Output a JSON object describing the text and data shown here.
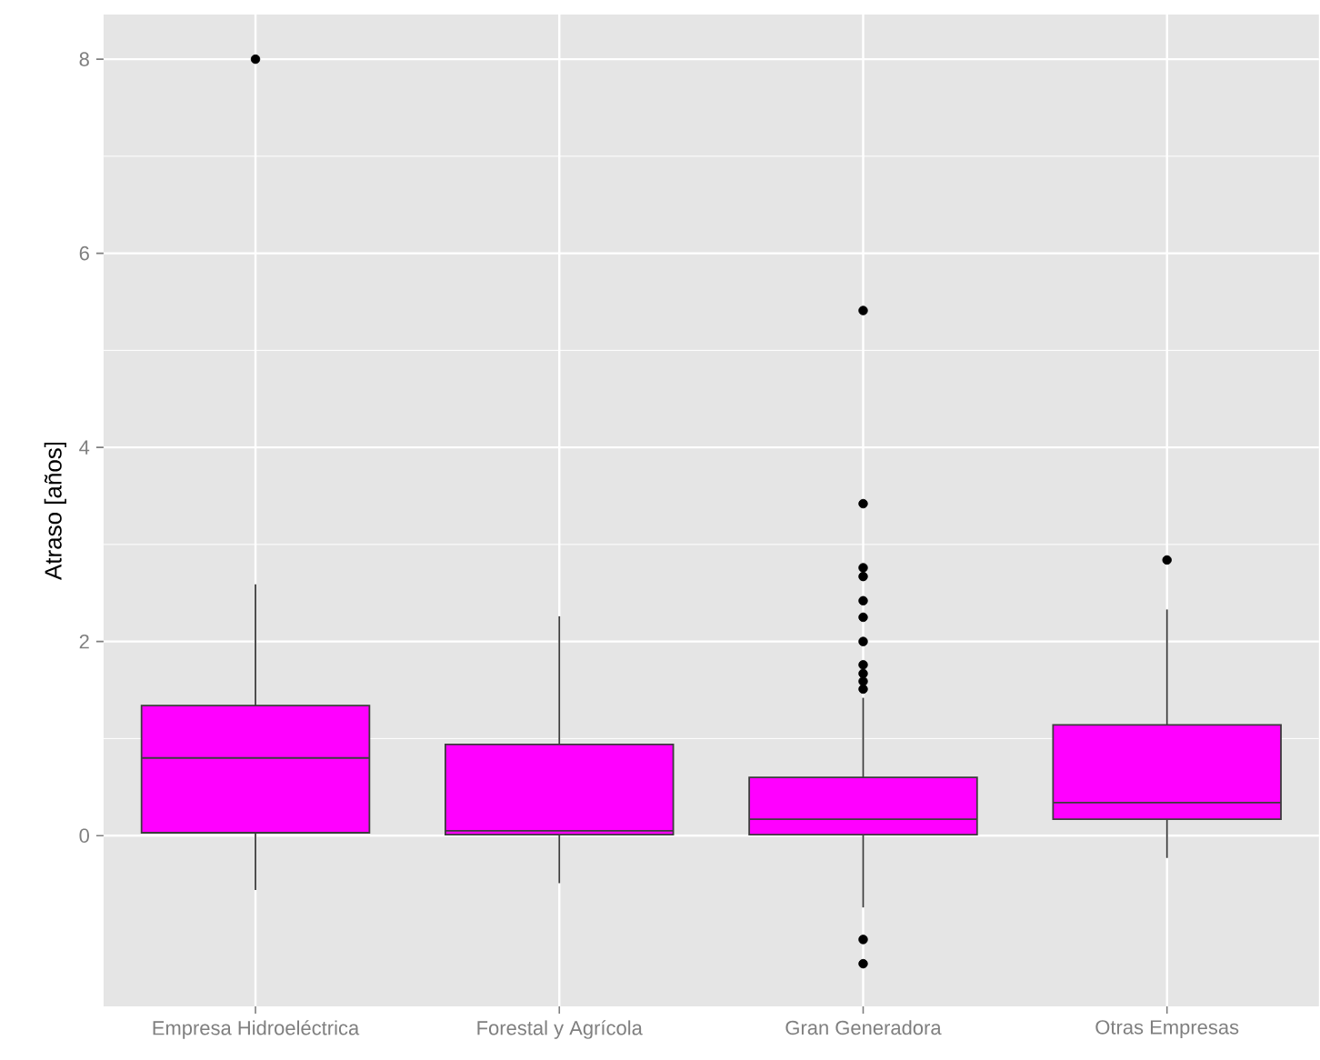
{
  "chart_data": {
    "type": "box",
    "ylabel": "Atraso [años]",
    "categories": [
      "Empresa Hidroeléctrica",
      "Forestal y Agrícola",
      "Gran Generadora",
      "Otras Empresas"
    ],
    "color": "#ff00ff",
    "boxes": [
      {
        "low": -0.56,
        "q1": 0.03,
        "median": 0.8,
        "q3": 1.34,
        "high": 2.59,
        "outliers": [
          8.0
        ]
      },
      {
        "low": -0.49,
        "q1": 0.01,
        "median": 0.05,
        "q3": 0.94,
        "high": 2.26
      },
      {
        "low": -0.74,
        "q1": 0.01,
        "median": 0.17,
        "q3": 0.6,
        "high": 1.42,
        "outliers": [
          5.41,
          3.42,
          2.76,
          2.67,
          2.42,
          2.25,
          2.0,
          1.76,
          1.67,
          1.59,
          1.51,
          -1.07,
          -1.32
        ]
      },
      {
        "low": -0.23,
        "q1": 0.17,
        "median": 0.34,
        "q3": 1.14,
        "high": 2.33,
        "outliers": [
          2.84
        ]
      }
    ],
    "ylim": [
      -1.76,
      8.46
    ],
    "yticks": [
      0,
      2,
      4,
      6,
      8
    ],
    "grid": true
  }
}
